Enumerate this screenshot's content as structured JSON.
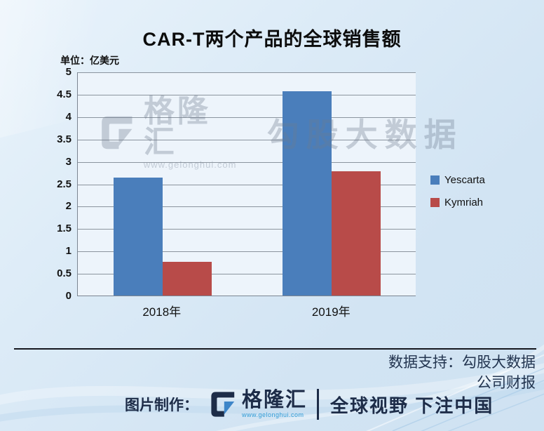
{
  "chart_data": {
    "type": "bar",
    "title": "CAR-T两个产品的全球销售额",
    "unit_label": "单位：亿美元",
    "categories": [
      "2018年",
      "2019年"
    ],
    "series": [
      {
        "name": "Yescarta",
        "color": "#4a7ebb",
        "values": [
          2.64,
          4.56
        ]
      },
      {
        "name": "Kymriah",
        "color": "#b84b49",
        "values": [
          0.76,
          2.78
        ]
      }
    ],
    "ylim": [
      0,
      5
    ],
    "yticks": [
      0,
      0.5,
      1,
      1.5,
      2,
      2.5,
      3,
      3.5,
      4,
      4.5,
      5
    ],
    "grid": true,
    "legend_position": "right",
    "xlabel": "",
    "ylabel": ""
  },
  "watermark": {
    "brand": "格隆汇",
    "url": "www.gelonghui.com",
    "name": "勾股大数据"
  },
  "footer": {
    "support_line1": "数据支持：勾股大数据",
    "support_line2": "公司财报",
    "credit_label": "图片制作：",
    "brand": "格隆汇",
    "brand_url": "www.gelonghui.com",
    "slogan": "全球视野 下注中国"
  },
  "colors": {
    "bar_blue": "#4a7ebb",
    "bar_red": "#b84b49",
    "background": "#d8e8f5",
    "plot_fill": "#edf4fb",
    "gridline": "#8b949e",
    "footer_navy": "#1d2c48",
    "url_teal": "#2e9bd6"
  }
}
